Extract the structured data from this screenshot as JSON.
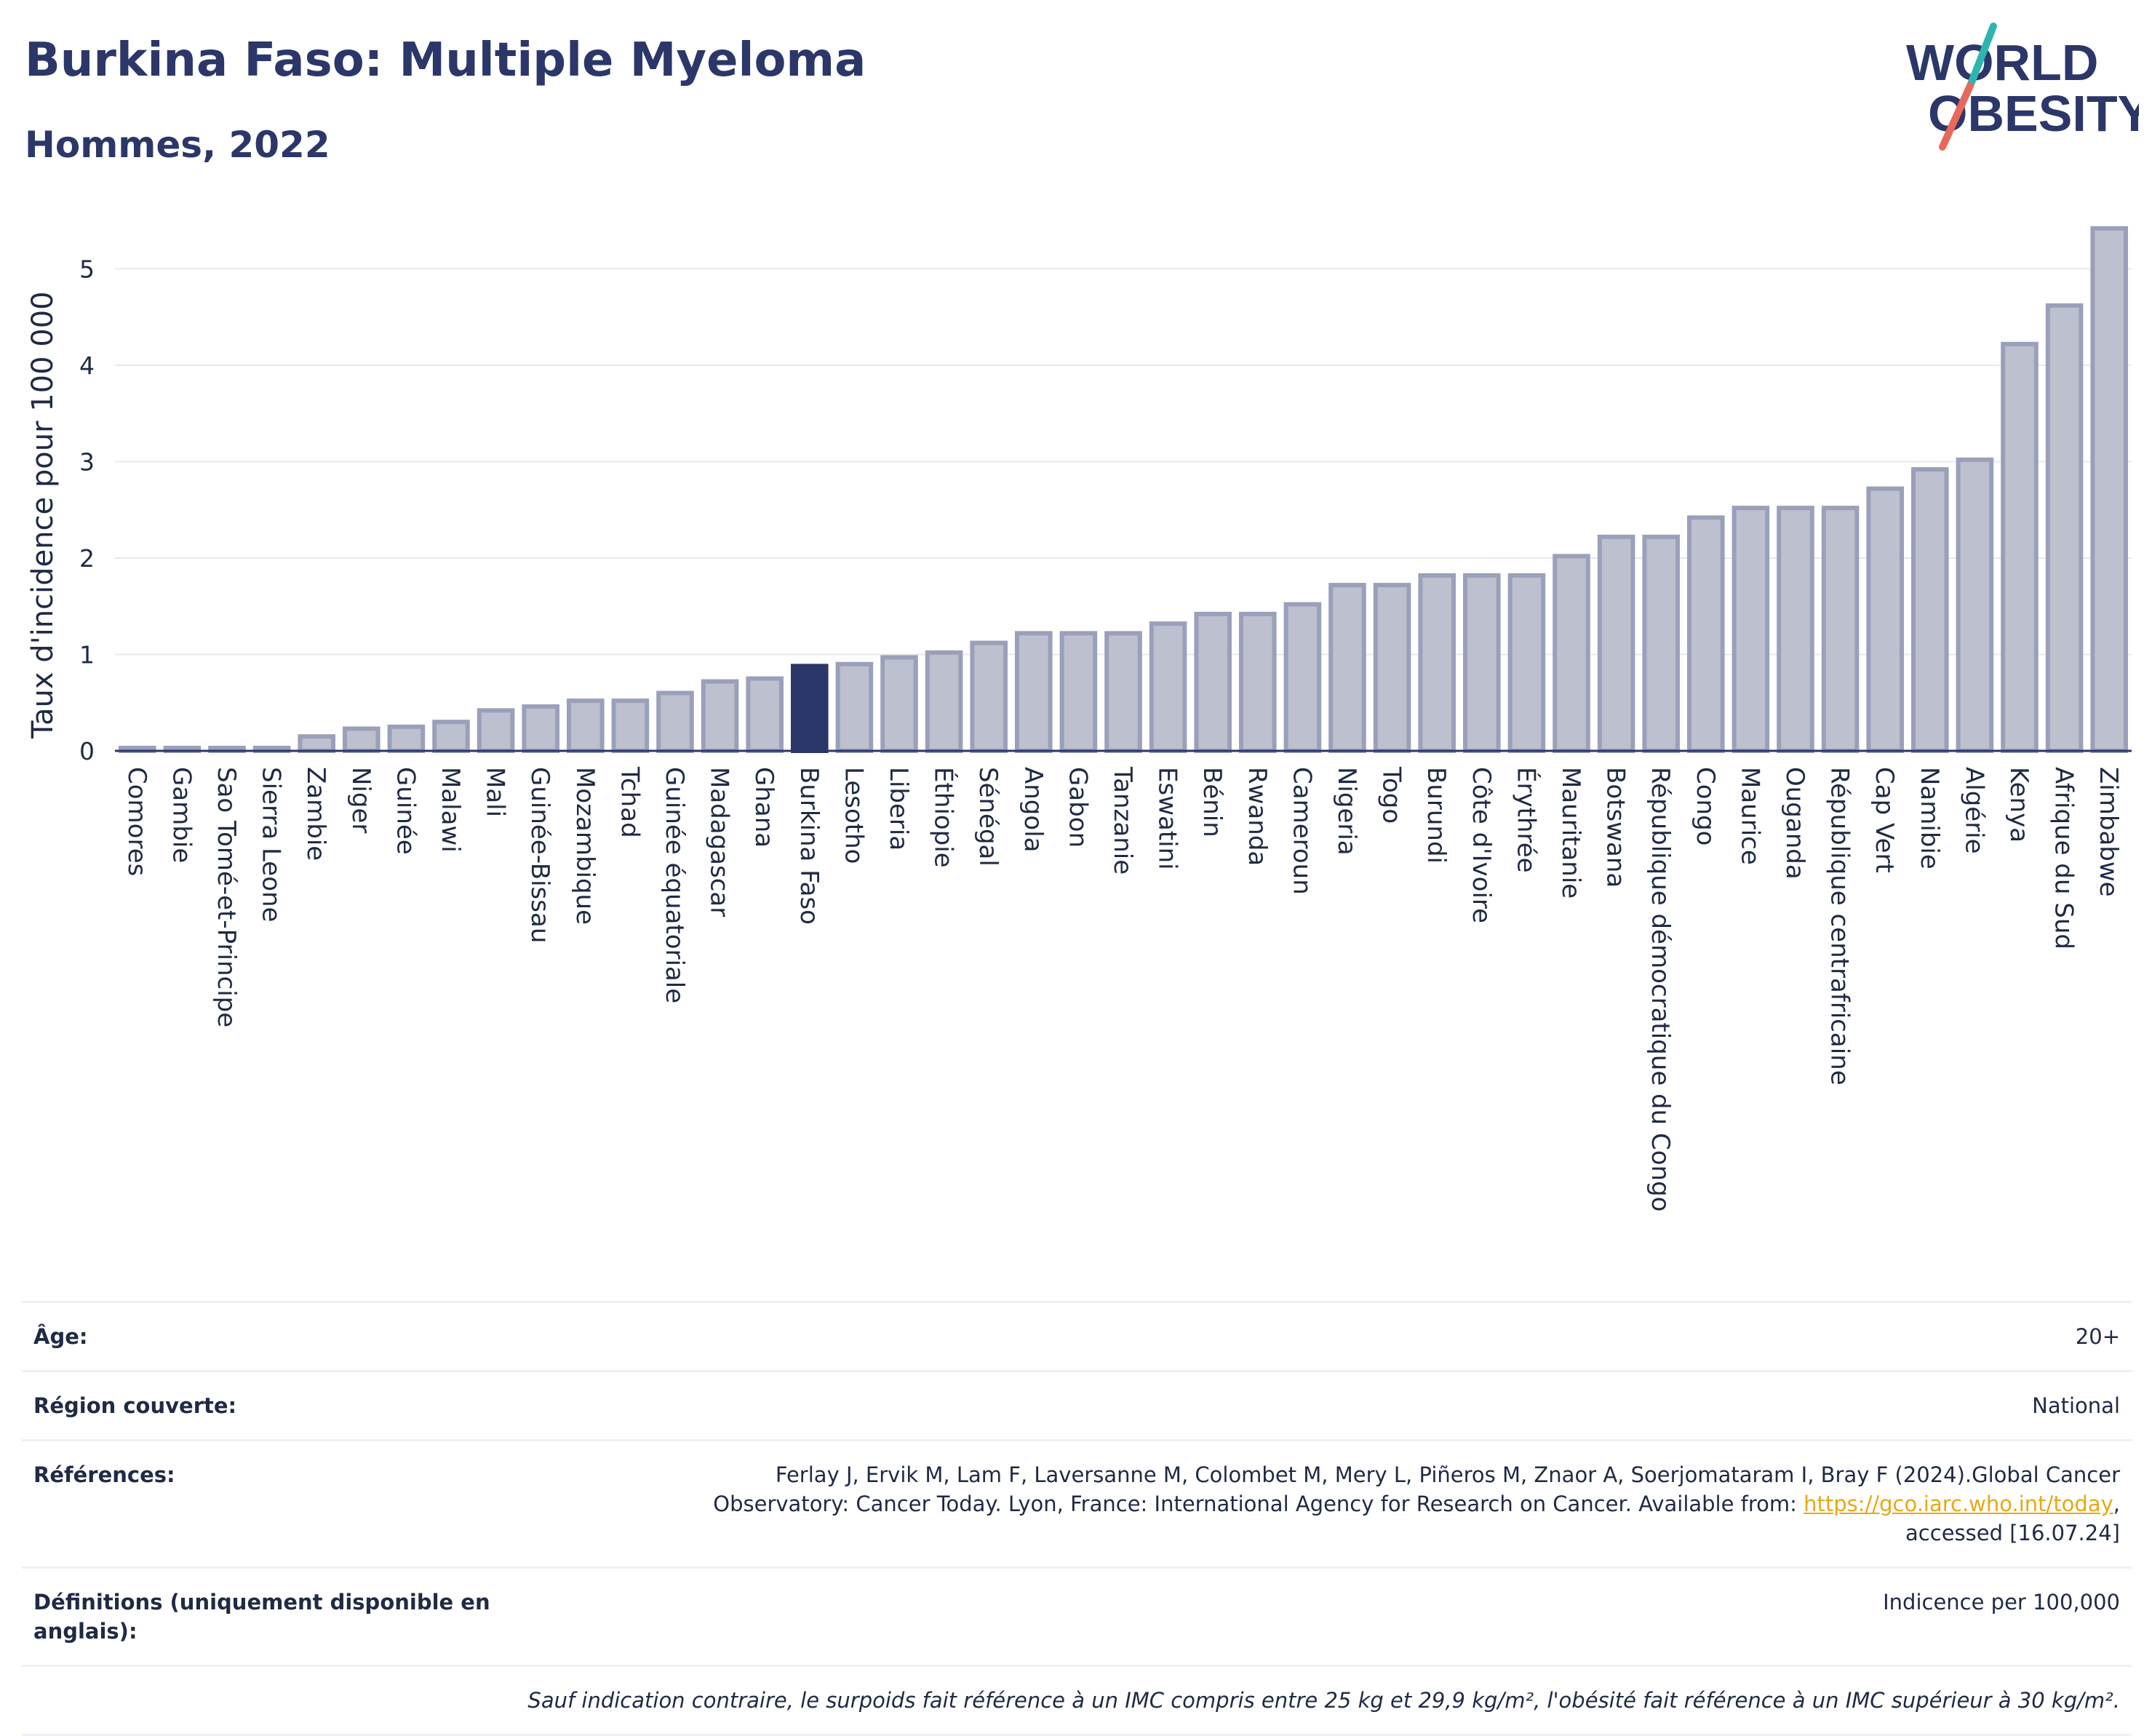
{
  "header": {
    "title": "Burkina Faso: Multiple Myeloma",
    "subtitle": "Hommes, 2022"
  },
  "logo": {
    "line1": "WORLD",
    "line2": "OBESITY"
  },
  "colors": {
    "bar_default": "#bcc0cf",
    "bar_default_stroke": "#9aa0b9",
    "bar_highlight": "#2b3768",
    "axis_text": "#1f2a44",
    "grid": "#e6e8ee",
    "link": "#e6a817",
    "logo_slash_top": "#2fb5b0",
    "logo_slash_bottom": "#e8685a"
  },
  "chart_data": {
    "type": "bar",
    "title": "",
    "ylabel": "Taux d'incidence pour 100 000",
    "xlabel": "",
    "ylim": [
      0,
      5.5
    ],
    "yticks": [
      0,
      1,
      2,
      3,
      4,
      5
    ],
    "grid": true,
    "highlight": "Burkina Faso",
    "categories": [
      "Comores",
      "Gambie",
      "Sao Tomé-et-Principe",
      "Sierra Leone",
      "Zambie",
      "Niger",
      "Guinée",
      "Malawi",
      "Mali",
      "Guinée-Bissau",
      "Mozambique",
      "Tchad",
      "Guinée équatoriale",
      "Madagascar",
      "Ghana",
      "Burkina Faso",
      "Lesotho",
      "Liberia",
      "Éthiopie",
      "Sénégal",
      "Angola",
      "Gabon",
      "Tanzanie",
      "Eswatini",
      "Bénin",
      "Rwanda",
      "Cameroun",
      "Nigeria",
      "Togo",
      "Burundi",
      "Côte d'Ivoire",
      "Érythrée",
      "Mauritanie",
      "Botswana",
      "République démocratique du Congo",
      "Congo",
      "Maurice",
      "Ouganda",
      "République centrafricaine",
      "Cap Vert",
      "Namibie",
      "Algérie",
      "Kenya",
      "Afrique du Sud",
      "Zimbabwe"
    ],
    "values": [
      0.03,
      0.03,
      0.03,
      0.03,
      0.15,
      0.23,
      0.25,
      0.3,
      0.42,
      0.46,
      0.52,
      0.52,
      0.6,
      0.72,
      0.75,
      0.88,
      0.9,
      0.97,
      1.02,
      1.12,
      1.22,
      1.22,
      1.22,
      1.32,
      1.42,
      1.42,
      1.52,
      1.72,
      1.72,
      1.82,
      1.82,
      1.82,
      2.02,
      2.22,
      2.22,
      2.42,
      2.52,
      2.52,
      2.52,
      2.72,
      2.92,
      3.02,
      4.22,
      4.62,
      5.42
    ]
  },
  "info": {
    "rows": [
      {
        "label": "Âge:",
        "value": "20+"
      },
      {
        "label": "Région couverte:",
        "value": "National"
      },
      {
        "label": "Références:",
        "value_line1": "Ferlay J, Ervik M, Lam F, Laversanne M, Colombet M, Mery L, Piñeros M, Znaor A, Soerjomataram I, Bray F (2024).Global Cancer",
        "value_line2_pre": "Observatory: Cancer Today. Lyon, France: International Agency for Research on Cancer. Available from: ",
        "link": "https://gco.iarc.who.int/today",
        "value_line2_post": ",",
        "value_line3": "accessed [16.07.24]"
      },
      {
        "label": "Définitions (uniquement disponible en anglais):",
        "value": "Indicence per 100,000"
      }
    ],
    "footnote": "Sauf indication contraire, le surpoids fait référence à un IMC compris entre 25 kg et 29,9 kg/m², l'obésité fait référence à un IMC supérieur à 30 kg/m²."
  }
}
